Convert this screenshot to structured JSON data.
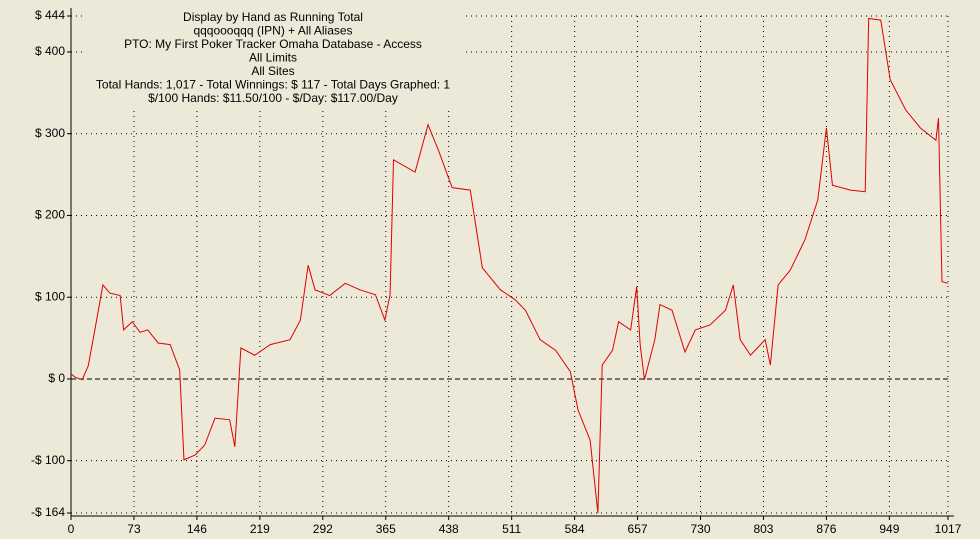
{
  "chart_data": {
    "type": "line",
    "title_lines": [
      "Display by Hand as Running Total",
      "qqqoooqqq (IPN) + All Aliases",
      "PTO: My First Poker Tracker Omaha Database - Access",
      "All Limits",
      "All Sites",
      "Total Hands: 1,017 - Total Winnings: $ 117 - Total Days Graphed: 1",
      "$/100 Hands: $11.50/100 - $/Day: $117.00/Day"
    ],
    "x": [
      0,
      5,
      13,
      20,
      28,
      37,
      45,
      57,
      61,
      71,
      80,
      89,
      101,
      115,
      126,
      131,
      144,
      155,
      167,
      184,
      190,
      197,
      213,
      231,
      254,
      266,
      275,
      283,
      300,
      318,
      335,
      353,
      364,
      370,
      374,
      399,
      414,
      426,
      442,
      463,
      477,
      498,
      515,
      527,
      544,
      562,
      579,
      588,
      602,
      611,
      616,
      628,
      635,
      649,
      656,
      660,
      665,
      677,
      683,
      697,
      712,
      724,
      741,
      759,
      768,
      776,
      788,
      805,
      811,
      820,
      834,
      851,
      866,
      876,
      883,
      904,
      921,
      925,
      939,
      950,
      968,
      985,
      1003,
      1006,
      1010,
      1017
    ],
    "series": [
      {
        "name": "Running Total",
        "color": "#e00000",
        "values": [
          6,
          2,
          -1,
          16,
          62,
          115,
          105,
          102,
          60,
          70,
          57,
          60,
          44,
          42,
          11,
          -99,
          -93,
          -81,
          -48,
          -50,
          -83,
          38,
          29,
          42,
          48,
          72,
          139,
          109,
          102,
          117,
          109,
          103,
          72,
          103,
          268,
          253,
          311,
          280,
          234,
          231,
          136,
          109,
          97,
          84,
          48,
          35,
          9,
          -38,
          -75,
          -164,
          17,
          35,
          70,
          60,
          113,
          42,
          -1,
          48,
          91,
          84,
          33,
          60,
          66,
          84,
          115,
          48,
          29,
          48,
          17,
          115,
          133,
          170,
          219,
          307,
          237,
          231,
          229,
          441,
          439,
          366,
          329,
          307,
          292,
          319,
          119,
          117
        ]
      }
    ],
    "xlim": [
      0,
      1017
    ],
    "xticks": [
      0,
      73,
      146,
      219,
      292,
      365,
      438,
      511,
      584,
      657,
      730,
      803,
      876,
      949,
      1017
    ],
    "ylim": [
      -164,
      444
    ],
    "yticks": [
      {
        "value": -164,
        "label": "-$ 164"
      },
      {
        "value": -100,
        "label": "-$ 100"
      },
      {
        "value": 0,
        "label": "$ 0"
      },
      {
        "value": 100,
        "label": "$ 100"
      },
      {
        "value": 200,
        "label": "$ 200"
      },
      {
        "value": 300,
        "label": "$ 300"
      },
      {
        "value": 400,
        "label": "$ 400"
      },
      {
        "value": 444,
        "label": "$ 444"
      }
    ],
    "grid": true
  }
}
